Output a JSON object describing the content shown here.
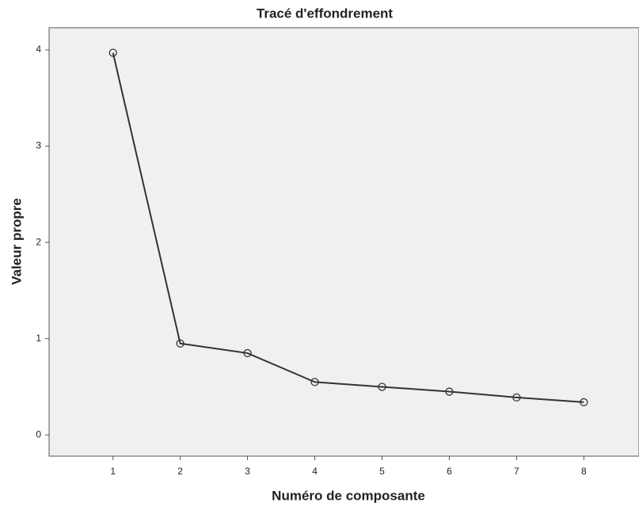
{
  "chart_data": {
    "type": "line",
    "title": "Tracé d'effondrement",
    "x_label": "Numéro de composante",
    "y_label": "Valeur propre",
    "x": [
      1,
      2,
      3,
      4,
      5,
      6,
      7,
      8
    ],
    "values": [
      3.97,
      0.95,
      0.85,
      0.55,
      0.5,
      0.45,
      0.39,
      0.34
    ],
    "color": "#333333",
    "xlim": [
      0.05,
      8.82
    ],
    "xticks": [
      1,
      2,
      3,
      4,
      5,
      6,
      7,
      8
    ],
    "ylim": [
      -0.22,
      4.23
    ],
    "yticks": [
      0,
      1,
      2,
      3,
      4
    ]
  }
}
